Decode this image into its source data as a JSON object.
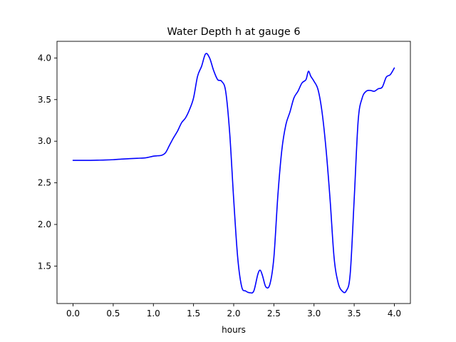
{
  "chart_data": {
    "type": "line",
    "title": "Water Depth h at gauge 6",
    "xlabel": "hours",
    "ylabel": "",
    "xlim": [
      -0.2,
      4.2
    ],
    "ylim": [
      1.05,
      4.2
    ],
    "xticks": [
      0.0,
      0.5,
      1.0,
      1.5,
      2.0,
      2.5,
      3.0,
      3.5,
      4.0
    ],
    "xtick_labels": [
      "0.0",
      "0.5",
      "1.0",
      "1.5",
      "2.0",
      "2.5",
      "3.0",
      "3.5",
      "4.0"
    ],
    "yticks": [
      1.5,
      2.0,
      2.5,
      3.0,
      3.5,
      4.0
    ],
    "ytick_labels": [
      "1.5",
      "2.0",
      "2.5",
      "3.0",
      "3.5",
      "4.0"
    ],
    "grid": false,
    "legend": "none",
    "series": [
      {
        "color": "#0000ff",
        "x": [
          0.0,
          0.1,
          0.2,
          0.3,
          0.4,
          0.5,
          0.6,
          0.7,
          0.8,
          0.9,
          1.0,
          1.05,
          1.1,
          1.15,
          1.2,
          1.25,
          1.3,
          1.35,
          1.4,
          1.45,
          1.5,
          1.55,
          1.6,
          1.65,
          1.7,
          1.75,
          1.8,
          1.85,
          1.9,
          1.95,
          2.0,
          2.05,
          2.1,
          2.15,
          2.2,
          2.25,
          2.3,
          2.33,
          2.36,
          2.4,
          2.45,
          2.5,
          2.55,
          2.6,
          2.65,
          2.7,
          2.75,
          2.8,
          2.85,
          2.9,
          2.93,
          2.96,
          3.0,
          3.05,
          3.1,
          3.15,
          3.2,
          3.25,
          3.3,
          3.35,
          3.4,
          3.45,
          3.5,
          3.55,
          3.6,
          3.65,
          3.7,
          3.75,
          3.8,
          3.85,
          3.9,
          3.95,
          4.0
        ],
        "y": [
          2.77,
          2.77,
          2.77,
          2.772,
          2.774,
          2.778,
          2.785,
          2.79,
          2.795,
          2.8,
          2.82,
          2.825,
          2.83,
          2.86,
          2.95,
          3.04,
          3.12,
          3.22,
          3.28,
          3.38,
          3.52,
          3.78,
          3.9,
          4.05,
          4.0,
          3.85,
          3.74,
          3.72,
          3.6,
          3.1,
          2.3,
          1.6,
          1.25,
          1.2,
          1.18,
          1.2,
          1.4,
          1.45,
          1.38,
          1.25,
          1.28,
          1.6,
          2.35,
          2.9,
          3.2,
          3.35,
          3.52,
          3.6,
          3.7,
          3.74,
          3.84,
          3.78,
          3.72,
          3.62,
          3.35,
          2.9,
          2.3,
          1.6,
          1.3,
          1.2,
          1.2,
          1.4,
          2.3,
          3.25,
          3.52,
          3.6,
          3.61,
          3.6,
          3.63,
          3.65,
          3.77,
          3.8,
          3.88
        ]
      }
    ]
  }
}
